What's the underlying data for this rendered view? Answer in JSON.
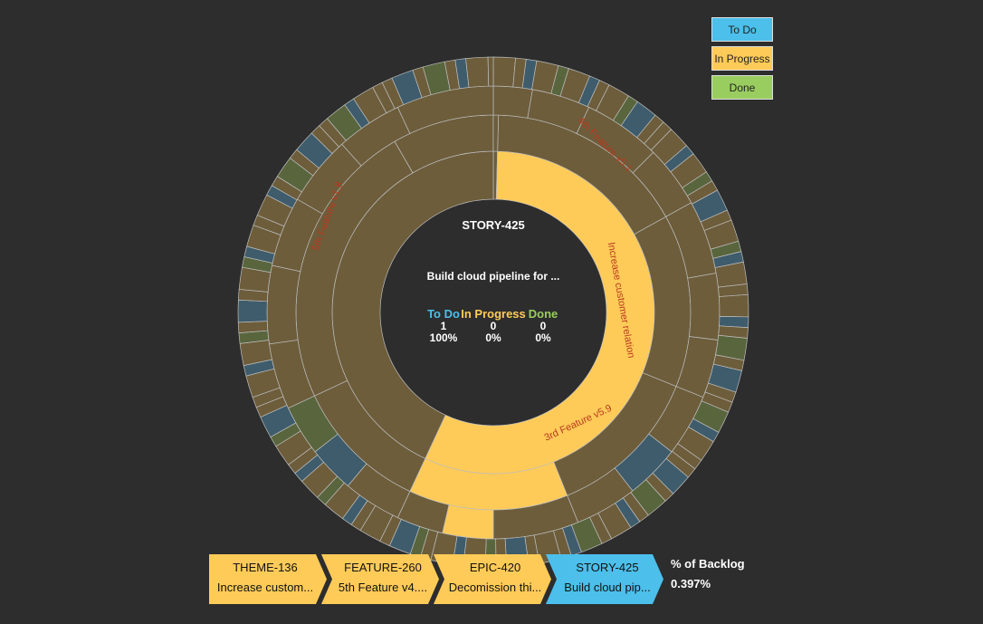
{
  "chart_data": {
    "type": "sunburst",
    "center": {
      "id": "STORY-425",
      "description": "Build cloud pipeline for ...",
      "status_counts": [
        {
          "label": "To Do",
          "count": "1",
          "percent": "100%"
        },
        {
          "label": "In Progress",
          "count": "0",
          "percent": "0%"
        },
        {
          "label": "Done",
          "count": "0",
          "percent": "0%"
        }
      ]
    },
    "arc_labels": [
      {
        "text": "Increase customer relation"
      },
      {
        "text": "4th Feature v5.1"
      },
      {
        "text": "3rd Feature v5.9"
      },
      {
        "text": "5th Feature v1.8"
      }
    ],
    "legend": [
      {
        "label": "To Do",
        "color": "#4cbfeb"
      },
      {
        "label": "In Progress",
        "color": "#ffcb58"
      },
      {
        "label": "Done",
        "color": "#9acd5f"
      }
    ],
    "faded_colors": {
      "todo": "#3e5c6c",
      "inprogress": "#6d5d3b",
      "done": "#59653d"
    }
  },
  "breadcrumb": [
    {
      "id": "THEME-136",
      "description": "Increase custom...",
      "status": "inprogress"
    },
    {
      "id": "FEATURE-260",
      "description": "5th Feature v4....",
      "status": "inprogress"
    },
    {
      "id": "EPIC-420",
      "description": "Decomission thi...",
      "status": "inprogress"
    },
    {
      "id": "STORY-425",
      "description": "Build cloud pip...",
      "status": "todo"
    }
  ],
  "backlog": {
    "label": "% of Backlog",
    "value": "0.397%"
  }
}
